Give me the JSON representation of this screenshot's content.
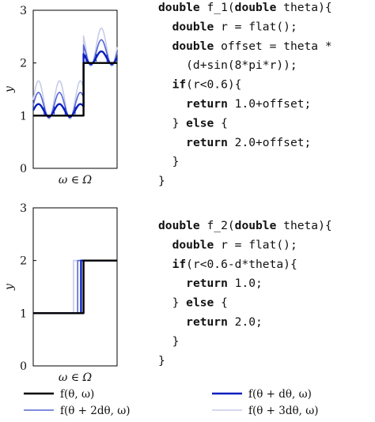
{
  "colors": {
    "c0": "#000000",
    "c1": "#0a1fbf",
    "c2": "#5566d6",
    "c3": "#c6cbea"
  },
  "chart_data": [
    {
      "type": "line",
      "xlabel": "ω ∈ Ω",
      "ylabel": "y",
      "ylim": [
        0,
        3
      ],
      "yticks": [
        "0",
        "1",
        "2",
        "3"
      ],
      "step_at": 0.6,
      "levels": [
        1.0,
        2.0
      ],
      "wave": "offset = theta*(d+sin(8*pi*r))",
      "series": [
        {
          "theta": 0,
          "color_key": "c0"
        },
        {
          "theta": 1,
          "color_key": "c1"
        },
        {
          "theta": 2,
          "color_key": "c2"
        },
        {
          "theta": 3,
          "color_key": "c3"
        }
      ]
    },
    {
      "type": "line",
      "xlabel": "ω ∈ Ω",
      "ylabel": "y",
      "ylim": [
        0,
        3
      ],
      "yticks": [
        "0",
        "1",
        "2",
        "3"
      ],
      "levels": [
        1.0,
        2.0
      ],
      "series": [
        {
          "step_at": 0.6,
          "color_key": "c0"
        },
        {
          "step_at": 0.57,
          "color_key": "c1"
        },
        {
          "step_at": 0.53,
          "color_key": "c2"
        },
        {
          "step_at": 0.48,
          "color_key": "c3"
        }
      ]
    }
  ],
  "code": {
    "f1": [
      [
        {
          "t": "double",
          "kw": true
        },
        {
          "t": " f_1("
        },
        {
          "t": "double",
          "kw": true
        },
        {
          "t": " theta){"
        }
      ],
      [
        {
          "t": "  "
        },
        {
          "t": "double",
          "kw": true
        },
        {
          "t": " r = flat();"
        }
      ],
      [
        {
          "t": "  "
        },
        {
          "t": "double",
          "kw": true
        },
        {
          "t": " offset = theta *"
        }
      ],
      [
        {
          "t": "    (d+sin(8*pi*r));"
        }
      ],
      [
        {
          "t": "  "
        },
        {
          "t": "if",
          "kw": true
        },
        {
          "t": "(r<0.6){"
        }
      ],
      [
        {
          "t": "    "
        },
        {
          "t": "return",
          "kw": true
        },
        {
          "t": " 1.0+offset;"
        }
      ],
      [
        {
          "t": "  } "
        },
        {
          "t": "else",
          "kw": true
        },
        {
          "t": " {"
        }
      ],
      [
        {
          "t": "    "
        },
        {
          "t": "return",
          "kw": true
        },
        {
          "t": " 2.0+offset;"
        }
      ],
      [
        {
          "t": "  }"
        }
      ],
      [
        {
          "t": "}"
        }
      ]
    ],
    "f2": [
      [
        {
          "t": "double",
          "kw": true
        },
        {
          "t": " f_2("
        },
        {
          "t": "double",
          "kw": true
        },
        {
          "t": " theta){"
        }
      ],
      [
        {
          "t": "  "
        },
        {
          "t": "double",
          "kw": true
        },
        {
          "t": " r = flat();"
        }
      ],
      [
        {
          "t": "  "
        },
        {
          "t": "if",
          "kw": true
        },
        {
          "t": "(r<0.6-d*theta){"
        }
      ],
      [
        {
          "t": "    "
        },
        {
          "t": "return",
          "kw": true
        },
        {
          "t": " 1.0;"
        }
      ],
      [
        {
          "t": "  } "
        },
        {
          "t": "else",
          "kw": true
        },
        {
          "t": " {"
        }
      ],
      [
        {
          "t": "    "
        },
        {
          "t": "return",
          "kw": true
        },
        {
          "t": " 2.0;"
        }
      ],
      [
        {
          "t": "  }"
        }
      ],
      [
        {
          "t": "}"
        }
      ]
    ]
  },
  "legend": [
    {
      "label": "f(θ, ω)",
      "color_key": "c0"
    },
    {
      "label": "f(θ + dθ, ω)",
      "color_key": "c1"
    },
    {
      "label": "f(θ + 2dθ, ω)",
      "color_key": "c2"
    },
    {
      "label": "f(θ + 3dθ, ω)",
      "color_key": "c3"
    }
  ]
}
